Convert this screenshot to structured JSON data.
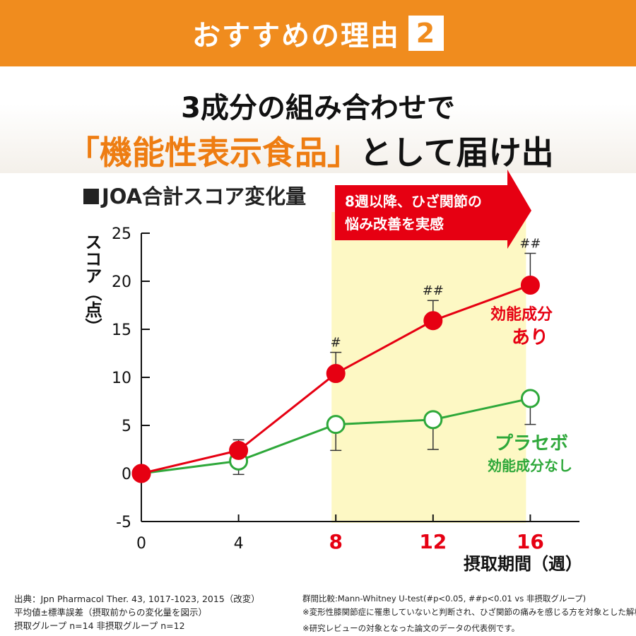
{
  "banner": {
    "title": "おすすめの理由",
    "number": "2"
  },
  "headline": {
    "line1": "3成分の組み合わせで",
    "line2_accent": "「機能性表示食品」",
    "line2_rest": "として届け出"
  },
  "callout": {
    "line1": "8週以降、ひざ関節の",
    "line2": "悩み改善を実感"
  },
  "colors": {
    "banner": "#f08c1e",
    "accent": "#ee7d12",
    "active": "#e60012",
    "placebo": "#2ea83a",
    "highlight": "#fdf8c4"
  },
  "chart_data": {
    "type": "line",
    "title": "JOA合計スコア変化量",
    "xlabel": "摂取期間（週）",
    "ylabel": "スコア（点）",
    "x": [
      0,
      4,
      8,
      12,
      16
    ],
    "x_tick_labels": [
      "0",
      "4",
      "8",
      "12",
      "16"
    ],
    "y_ticks": [
      -5,
      0,
      5,
      10,
      15,
      20,
      25
    ],
    "y_tick_labels": [
      "-5",
      "0",
      "5",
      "10",
      "15",
      "20",
      "25"
    ],
    "ylim": [
      -5,
      25
    ],
    "highlight_range": [
      8,
      16
    ],
    "series": [
      {
        "name": "効能成分あり",
        "name_line1": "効能成分",
        "name_line2": "あり",
        "values": [
          0,
          2.4,
          10.4,
          15.9,
          19.6
        ],
        "error": [
          0,
          1.1,
          2.2,
          2.1,
          3.3
        ],
        "error_dir": "up",
        "markers": "filled",
        "significance": [
          "",
          "",
          "#",
          "##",
          "##"
        ]
      },
      {
        "name": "プラセボ 効能成分なし",
        "name_line1": "プラセボ",
        "name_line2": "効能成分なし",
        "values": [
          0,
          1.3,
          5.1,
          5.6,
          7.8
        ],
        "error": [
          0,
          1.4,
          2.7,
          3.1,
          2.7
        ],
        "error_dir": "down",
        "markers": "open"
      }
    ]
  },
  "footnotes": {
    "left": [
      "出典：Jpn Pharmacol Ther. 43, 1017-1023, 2015（改変）",
      "平均値±標準誤差（摂取前からの変化量を図示）",
      "摂取グループ n=14  非摂取グループ n=12"
    ],
    "right": [
      "群間比較:Mann-Whitney U-test(#p<0.05, ##p<0.01 vs 非摂取グループ)",
      "※変形性膝関節症に罹患していないと判断され、ひざ関節の痛みを感じる方を対象とした解析",
      "※研究レビューの対象となった論文のデータの代表例です。"
    ]
  }
}
